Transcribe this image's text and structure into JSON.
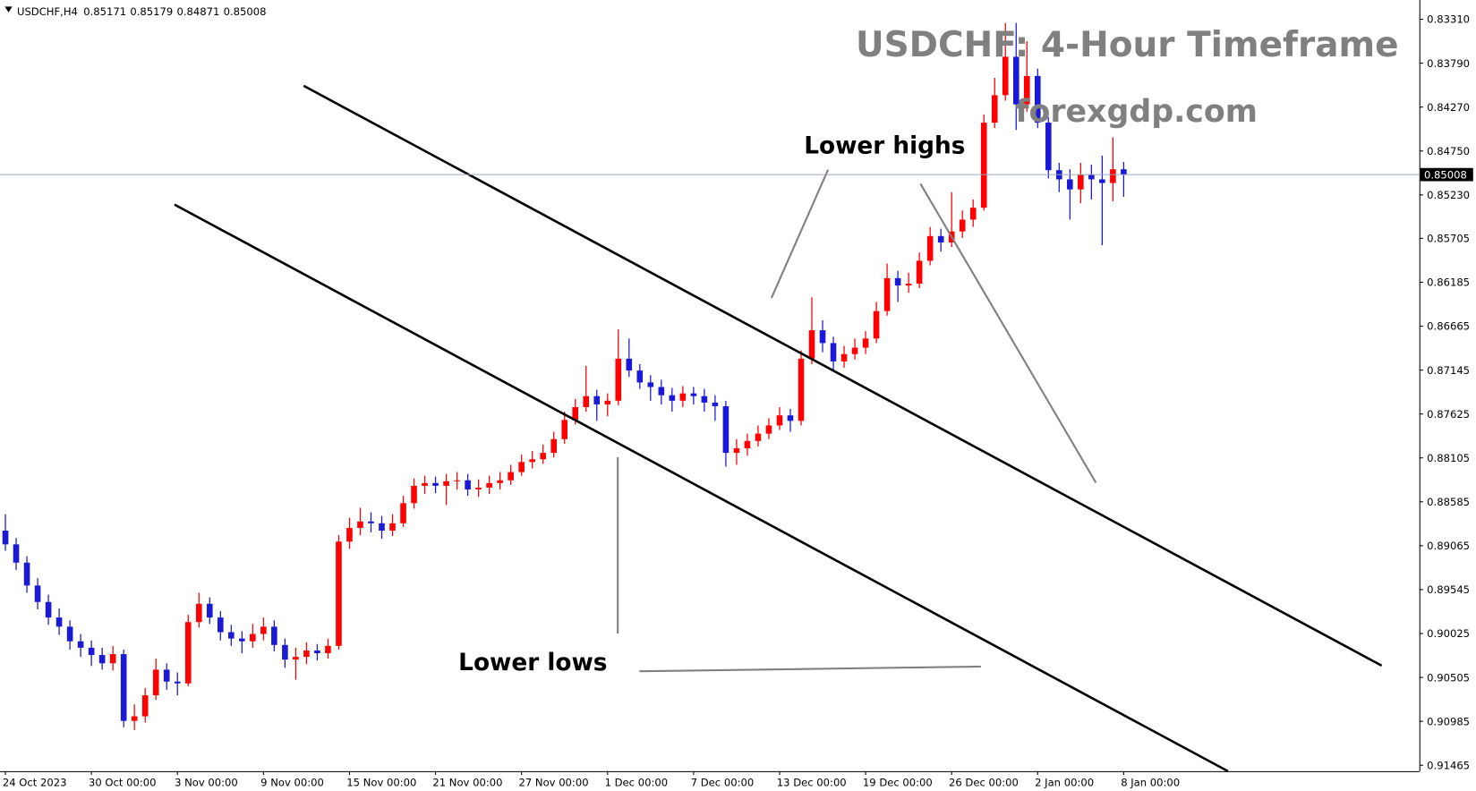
{
  "chart_data": {
    "type": "candlestick",
    "title": "USDCHF: 4-Hour Timeframe",
    "subtitle": "forexgdp.com",
    "symbol": "USDCHF,H4",
    "header_ohlc": [
      0.85171,
      0.85179,
      0.84871,
      0.85008
    ],
    "current_price": 0.85008,
    "annotations": [
      "Lower highs",
      "Lower lows"
    ],
    "up_color": "#1a1ad6",
    "down_color": "#ff0000",
    "price_line_color": "#9aaabb",
    "xlim": [
      -0.5,
      131.5
    ],
    "xticks": [
      {
        "value": 0,
        "label": "24 Oct 2023"
      },
      {
        "value": 8,
        "label": "30 Oct 00:00"
      },
      {
        "value": 16,
        "label": "3 Nov 00:00"
      },
      {
        "value": 24,
        "label": "9 Nov 00:00"
      },
      {
        "value": 32,
        "label": "15 Nov 00:00"
      },
      {
        "value": 40,
        "label": "21 Nov 00:00"
      },
      {
        "value": 48,
        "label": "27 Nov 00:00"
      },
      {
        "value": 56,
        "label": "1 Dec 00:00"
      },
      {
        "value": 64,
        "label": "7 Dec 00:00"
      },
      {
        "value": 72,
        "label": "13 Dec 00:00"
      },
      {
        "value": 80,
        "label": "19 Dec 00:00"
      },
      {
        "value": 88,
        "label": "26 Dec 00:00"
      },
      {
        "value": 96,
        "label": "2 Jan 00:00"
      },
      {
        "value": 104,
        "label": "8 Jan 00:00"
      }
    ],
    "ylim": [
      0.8312,
      0.9153
    ],
    "yticks": [
      0.91465,
      0.90985,
      0.90505,
      {
        "value": 0.90025,
        "label": "0.90025"
      },
      0.89545,
      0.89065,
      0.88585,
      0.88105,
      0.87625,
      0.87145,
      0.86665,
      0.86185,
      0.85705,
      {
        "value": 0.8523,
        "label": "0.85230"
      },
      {
        "value": 0.8475,
        "label": "0.84750"
      },
      {
        "value": 0.8427,
        "label": "0.84270"
      },
      {
        "value": 0.8379,
        "label": "0.83790"
      },
      {
        "value": 0.8331,
        "label": "0.83310"
      }
    ],
    "open": [
      0.889,
      0.8905,
      0.8925,
      0.895,
      0.8968,
      0.8985,
      0.8995,
      0.9011,
      0.9018,
      0.9026,
      0.9035,
      0.9025,
      0.9098,
      0.9093,
      0.907,
      0.9042,
      0.9055,
      0.9057,
      0.899,
      0.897,
      0.8985,
      0.9001,
      0.9008,
      0.9011,
      0.9003,
      0.8995,
      0.9015,
      0.9031,
      0.9028,
      0.9021,
      0.9024,
      0.9016,
      0.8902,
      0.8887,
      0.888,
      0.8882,
      0.889,
      0.8882,
      0.886,
      0.8841,
      0.8838,
      0.8841,
      0.8836,
      0.8835,
      0.8845,
      0.8843,
      0.8838,
      0.8835,
      0.8826,
      0.8815,
      0.8812,
      0.8805,
      0.879,
      0.8769,
      0.8755,
      0.8743,
      0.8752,
      0.8748,
      0.8702,
      0.8715,
      0.8728,
      0.8733,
      0.8742,
      0.8748,
      0.874,
      0.8743,
      0.875,
      0.8754,
      0.8805,
      0.88,
      0.8792,
      0.8784,
      0.8775,
      0.8764,
      0.877,
      0.8702,
      0.8671,
      0.8685,
      0.8705,
      0.8697,
      0.869,
      0.868,
      0.865,
      0.8614,
      0.8622,
      0.862,
      0.8595,
      0.8568,
      0.8575,
      0.8563,
      0.855,
      0.8537,
      0.8444,
      0.8414,
      0.8372,
      0.8424,
      0.8393,
      0.8444,
      0.8496,
      0.8506,
      0.8517,
      0.8501,
      0.8506,
      0.851,
      0.8495
    ],
    "high": [
      0.8912,
      0.8933,
      0.8958,
      0.8976,
      0.8993,
      0.9004,
      0.902,
      0.9028,
      0.9038,
      0.9042,
      0.9043,
      0.9105,
      0.9108,
      0.91,
      0.9075,
      0.9064,
      0.907,
      0.906,
      0.8996,
      0.8992,
      0.901,
      0.9016,
      0.9024,
      0.9018,
      0.901,
      0.9022,
      0.904,
      0.9053,
      0.9036,
      0.9032,
      0.903,
      0.902,
      0.891,
      0.8895,
      0.8892,
      0.8899,
      0.8896,
      0.8886,
      0.8866,
      0.885,
      0.8849,
      0.8862,
      0.8845,
      0.8852,
      0.8853,
      0.885,
      0.8845,
      0.884,
      0.883,
      0.8822,
      0.8817,
      0.881,
      0.8795,
      0.8774,
      0.876,
      0.877,
      0.8765,
      0.8753,
      0.8722,
      0.8735,
      0.8748,
      0.8752,
      0.876,
      0.8755,
      0.8752,
      0.876,
      0.877,
      0.882,
      0.8818,
      0.8808,
      0.8798,
      0.879,
      0.878,
      0.8782,
      0.8775,
      0.8708,
      0.8695,
      0.8715,
      0.8712,
      0.8703,
      0.8697,
      0.8685,
      0.8655,
      0.864,
      0.863,
      0.8625,
      0.86,
      0.8585,
      0.858,
      0.857,
      0.8558,
      0.854,
      0.845,
      0.842,
      0.8452,
      0.8432,
      0.845,
      0.8505,
      0.852,
      0.855,
      0.8532,
      0.8528,
      0.8578,
      0.853,
      0.8525
    ],
    "low": [
      0.8872,
      0.8898,
      0.8918,
      0.8942,
      0.896,
      0.8975,
      0.8988,
      0.9003,
      0.901,
      0.9018,
      0.9016,
      0.902,
      0.908,
      0.9062,
      0.903,
      0.9035,
      0.9045,
      0.8982,
      0.8958,
      0.8963,
      0.8978,
      0.8993,
      0.9,
      0.8992,
      0.8985,
      0.8988,
      0.9008,
      0.9018,
      0.9012,
      0.9014,
      0.9008,
      0.8895,
      0.8876,
      0.8865,
      0.887,
      0.8874,
      0.8872,
      0.8852,
      0.8833,
      0.883,
      0.8831,
      0.8828,
      0.8826,
      0.8828,
      0.8834,
      0.883,
      0.8826,
      0.8818,
      0.8807,
      0.8803,
      0.8796,
      0.8782,
      0.876,
      0.8746,
      0.871,
      0.8736,
      0.874,
      0.867,
      0.868,
      0.8708,
      0.872,
      0.8725,
      0.8734,
      0.8732,
      0.8733,
      0.8735,
      0.8742,
      0.8748,
      0.879,
      0.8784,
      0.8775,
      0.8767,
      0.8755,
      0.8757,
      0.8693,
      0.8635,
      0.866,
      0.8678,
      0.8688,
      0.868,
      0.8672,
      0.864,
      0.8598,
      0.8606,
      0.8608,
      0.8586,
      0.8558,
      0.856,
      0.852,
      0.854,
      0.8528,
      0.8435,
      0.8395,
      0.8335,
      0.8335,
      0.8355,
      0.8385,
      0.8438,
      0.8488,
      0.8495,
      0.8488,
      0.849,
      0.848,
      0.846,
      0.8487
    ],
    "close": [
      0.8905,
      0.8925,
      0.895,
      0.8968,
      0.8985,
      0.8995,
      0.9011,
      0.9018,
      0.9026,
      0.9035,
      0.9025,
      0.9098,
      0.9093,
      0.907,
      0.9042,
      0.9055,
      0.9057,
      0.899,
      0.897,
      0.8985,
      0.9001,
      0.9008,
      0.9011,
      0.9003,
      0.8995,
      0.9015,
      0.9031,
      0.9028,
      0.9021,
      0.9024,
      0.9016,
      0.8902,
      0.8887,
      0.888,
      0.8882,
      0.889,
      0.8882,
      0.886,
      0.8841,
      0.8838,
      0.8841,
      0.8836,
      0.8835,
      0.8845,
      0.8843,
      0.8838,
      0.8835,
      0.8826,
      0.8815,
      0.8812,
      0.8805,
      0.879,
      0.8769,
      0.8755,
      0.8743,
      0.8752,
      0.8748,
      0.8702,
      0.8715,
      0.8728,
      0.8733,
      0.8742,
      0.8748,
      0.874,
      0.8743,
      0.875,
      0.8754,
      0.8805,
      0.88,
      0.8792,
      0.8784,
      0.8775,
      0.8764,
      0.877,
      0.8702,
      0.8671,
      0.8685,
      0.8705,
      0.8697,
      0.869,
      0.868,
      0.865,
      0.8614,
      0.8622,
      0.862,
      0.8595,
      0.8568,
      0.8575,
      0.8563,
      0.855,
      0.8537,
      0.8444,
      0.8414,
      0.8372,
      0.8424,
      0.8393,
      0.8444,
      0.8496,
      0.8506,
      0.8517,
      0.8501,
      0.8506,
      0.851,
      0.8495,
      0.85008
    ]
  }
}
